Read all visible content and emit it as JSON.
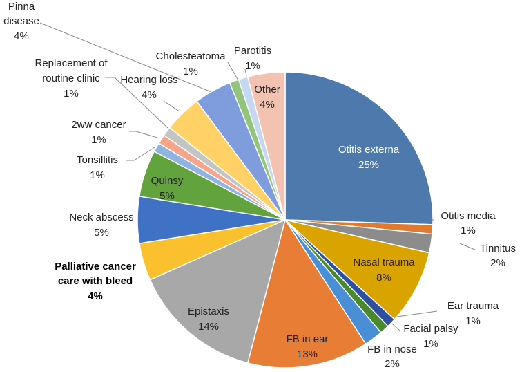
{
  "chart_data": {
    "type": "pie",
    "title": "",
    "legend": "none",
    "start": "12 o'clock",
    "direction": "clockwise",
    "slices": [
      {
        "label": "Otitis externa",
        "value": 25,
        "pct": "25%",
        "color": "#4e79ad"
      },
      {
        "label": "Otitis media",
        "value": 1,
        "pct": "1%",
        "color": "#e07a2f"
      },
      {
        "label": "Tinnitus",
        "value": 2,
        "pct": "2%",
        "color": "#8c8c8c"
      },
      {
        "label": "Nasal trauma",
        "value": 8,
        "pct": "8%",
        "color": "#d9a400"
      },
      {
        "label": "Ear trauma",
        "value": 1,
        "pct": "1%",
        "color": "#2f4f9f"
      },
      {
        "label": "Facial palsy",
        "value": 1,
        "pct": "1%",
        "color": "#4a8a2e"
      },
      {
        "label": "FB in nose",
        "value": 2,
        "pct": "2%",
        "color": "#4a8ed6"
      },
      {
        "label": "FB in ear",
        "value": 13,
        "pct": "13%",
        "color": "#e87d35"
      },
      {
        "label": "Epistaxis",
        "value": 14,
        "pct": "14%",
        "color": "#a8a8a8"
      },
      {
        "label": "Palliative cancer care with bleed",
        "value": 4,
        "pct": "4%",
        "color": "#fbc02d"
      },
      {
        "label": "Neck abscess",
        "value": 5,
        "pct": "5%",
        "color": "#3f72c4"
      },
      {
        "label": "Quinsy",
        "value": 5,
        "pct": "5%",
        "color": "#63a33e"
      },
      {
        "label": "Tonsillitis",
        "value": 1,
        "pct": "1%",
        "color": "#8fb4e0"
      },
      {
        "label": "2ww cancer",
        "value": 1,
        "pct": "1%",
        "color": "#f4a58a"
      },
      {
        "label": "Replacement of routine clinic",
        "value": 1,
        "pct": "1%",
        "color": "#c4c4c4"
      },
      {
        "label": "Hearing loss",
        "value": 4,
        "pct": "4%",
        "color": "#ffd166"
      },
      {
        "label": "Pinna disease",
        "value": 4,
        "pct": "4%",
        "color": "#7f9ddd"
      },
      {
        "label": "Cholesteatoma",
        "value": 1,
        "pct": "1%",
        "color": "#93c47d"
      },
      {
        "label": "Parotitis",
        "value": 1,
        "pct": "1%",
        "color": "#c5d8f0"
      },
      {
        "label": "Other",
        "value": 4,
        "pct": "4%",
        "color": "#f4c2b0"
      }
    ]
  }
}
